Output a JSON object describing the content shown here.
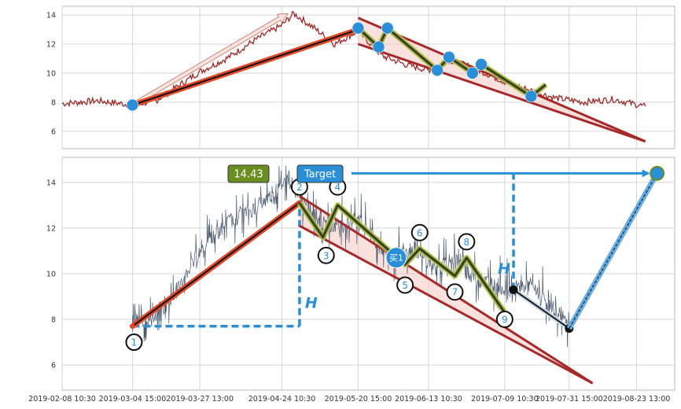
{
  "chart_data": [
    {
      "type": "line",
      "panel": "top",
      "ylim": [
        4.8,
        14.6
      ],
      "yticks": [
        "6",
        "8",
        "10",
        "12",
        "14"
      ],
      "ytick_values": [
        6,
        8,
        10,
        12,
        14
      ],
      "grid": true,
      "series": [
        {
          "price_waypoints_x": [
            "2019-02-08",
            "2019-02-20",
            "2019-03-04",
            "2019-03-12",
            "2019-03-27",
            "2019-04-05",
            "2019-04-15",
            "2019-04-24",
            "2019-04-28",
            "2019-05-05",
            "2019-05-12",
            "2019-05-20",
            "2019-05-28",
            "2019-06-05",
            "2019-06-13",
            "2019-06-20",
            "2019-06-28",
            "2019-07-09",
            "2019-07-18",
            "2019-07-26",
            "2019-08-05",
            "2019-08-15",
            "2019-08-26"
          ],
          "price_waypoints_y": [
            7.9,
            8.1,
            7.8,
            8.1,
            10.1,
            11.0,
            12.3,
            13.3,
            14.1,
            13.1,
            12.0,
            12.9,
            11.2,
            10.6,
            10.2,
            10.9,
            10.4,
            9.4,
            8.8,
            8.3,
            8.0,
            8.2,
            7.7
          ]
        }
      ],
      "markers": {
        "points_x": [
          "2019-03-04",
          "2019-05-20",
          "2019-05-27",
          "2019-05-30",
          "2019-06-16",
          "2019-06-20",
          "2019-06-28",
          "2019-07-01",
          "2019-07-18"
        ],
        "points_y": [
          7.8,
          13.1,
          11.8,
          13.1,
          10.2,
          11.1,
          10.0,
          10.6,
          8.4
        ],
        "zigzag_x": [
          "2019-05-20",
          "2019-05-27",
          "2019-05-30",
          "2019-06-16",
          "2019-06-20",
          "2019-06-28",
          "2019-07-01",
          "2019-07-18",
          "2019-07-23"
        ],
        "zigzag_y": [
          13.1,
          11.8,
          13.1,
          10.2,
          11.1,
          10.0,
          10.6,
          8.4,
          9.2
        ],
        "trend_line_x": [
          "2019-03-04",
          "2019-05-20"
        ],
        "trend_line_y": [
          7.8,
          13.0
        ],
        "arrow_x": [
          "2019-03-04",
          "2019-04-26"
        ],
        "arrow_y": [
          7.8,
          14.1
        ],
        "wedge_upper_x": [
          "2019-05-20",
          "2019-08-26"
        ],
        "wedge_upper_y": [
          13.8,
          5.3
        ],
        "wedge_lower_x": [
          "2019-05-20",
          "2019-08-26"
        ],
        "wedge_lower_y": [
          12.0,
          5.3
        ]
      }
    },
    {
      "type": "line",
      "panel": "bottom",
      "ylim": [
        4.9,
        15.1
      ],
      "yticks": [
        "6",
        "8",
        "10",
        "12",
        "14"
      ],
      "ytick_values": [
        6,
        8,
        10,
        12,
        14
      ],
      "xticks": [
        "2019-02-08 10:30",
        "2019-03-04 15:00",
        "2019-03-27 13:00",
        "2019-04-24 10:30",
        "2019-05-20 15:00",
        "2019-06-13 10:30",
        "2019-07-09 10:30",
        "2019-07-31 15:00",
        "2019-08-23 13:00"
      ],
      "xtick_dates": [
        "2019-02-08",
        "2019-03-04",
        "2019-03-27",
        "2019-04-24",
        "2019-05-20",
        "2019-06-13",
        "2019-07-09",
        "2019-07-31",
        "2019-08-23"
      ],
      "grid": true,
      "series": [
        {
          "price_waypoints_x": [
            "2019-03-04",
            "2019-03-12",
            "2019-03-20",
            "2019-03-27",
            "2019-04-05",
            "2019-04-15",
            "2019-04-22",
            "2019-04-26",
            "2019-05-02",
            "2019-05-08",
            "2019-05-12",
            "2019-05-20",
            "2019-05-26",
            "2019-05-30",
            "2019-06-05",
            "2019-06-10",
            "2019-06-16",
            "2019-06-22",
            "2019-06-28",
            "2019-07-05",
            "2019-07-10",
            "2019-07-18",
            "2019-07-26",
            "2019-07-31"
          ],
          "price_waypoints_y": [
            7.9,
            8.0,
            9.5,
            11.0,
            12.2,
            12.9,
            13.6,
            14.2,
            13.0,
            12.2,
            12.0,
            12.4,
            11.4,
            10.8,
            10.9,
            11.0,
            10.1,
            10.7,
            9.8,
            9.6,
            9.3,
            9.5,
            8.4,
            7.8
          ]
        }
      ],
      "labels": {
        "price_tag": "14.43",
        "target_tag": "Target",
        "buy_marker": "买1",
        "h_left": "H",
        "h_right": "H",
        "wave_numbers": [
          "1",
          "2",
          "3",
          "4",
          "5",
          "6",
          "7",
          "8",
          "9"
        ]
      },
      "markers": {
        "wave_points_x": [
          "2019-03-04",
          "2019-04-30",
          "2019-05-08",
          "2019-05-13",
          "2019-06-05",
          "2019-06-10",
          "2019-06-22",
          "2019-06-26",
          "2019-07-09"
        ],
        "wave_points_y": [
          7.7,
          13.1,
          11.6,
          13.0,
          10.4,
          11.1,
          9.9,
          10.7,
          8.3
        ],
        "wave_labels_y": [
          7.0,
          13.8,
          10.8,
          13.8,
          9.5,
          11.8,
          9.2,
          11.4,
          8.0
        ],
        "buy_point_x": "2019-06-02",
        "buy_point_y": 10.7,
        "trend_line_x": [
          "2019-03-04",
          "2019-04-30"
        ],
        "trend_line_y": [
          7.7,
          13.1
        ],
        "wedge_upper_x": [
          "2019-04-30",
          "2019-08-08"
        ],
        "wedge_upper_y": [
          13.4,
          5.2
        ],
        "wedge_lower_x": [
          "2019-04-30",
          "2019-08-08"
        ],
        "wedge_lower_y": [
          12.1,
          5.2
        ],
        "projection_x": [
          "2019-07-12",
          "2019-07-31"
        ],
        "projection_y": [
          9.3,
          7.6
        ],
        "target_line_x": [
          "2019-07-31",
          "2019-08-30"
        ],
        "target_line_y": [
          7.6,
          14.4
        ],
        "target_point_x": "2019-08-30",
        "target_point_y": 14.4,
        "h_vertical_left_x": "2019-04-30",
        "h_vertical_left_y": [
          7.7,
          13.1
        ],
        "h_horizontal_left_y": 7.7,
        "h_vertical_right_x": "2019-07-12",
        "h_vertical_right_y": [
          9.3,
          14.4
        ],
        "target_arrow_y": 14.4
      }
    }
  ],
  "colors": {
    "price_top": "#a02828",
    "price_bottom": "#4a5a6e",
    "trend_outer": "#e04a2a",
    "wedge_line": "#a62a2a",
    "wedge_fill": "#f6c9c2",
    "zigzag_outer": "#7a8a2a",
    "zigzag_inner": "#1a1a1a",
    "zigzag_glow": "#c4d86a",
    "marker_blue": "#2a8fd6",
    "tag_green": "#6b8e23",
    "tag_blue": "#2a8fd6",
    "h_blue": "#2a8fd6",
    "proj_dark": "#1a1a1a"
  }
}
